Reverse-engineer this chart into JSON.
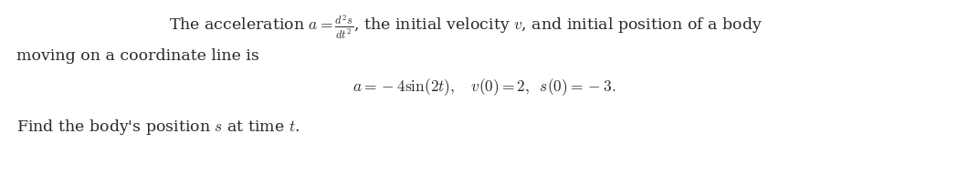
{
  "figsize": [
    10.6,
    1.92
  ],
  "dpi": 100,
  "background_color": "#ffffff",
  "text_color": "#2a2a2a",
  "fontsize": 12.5
}
